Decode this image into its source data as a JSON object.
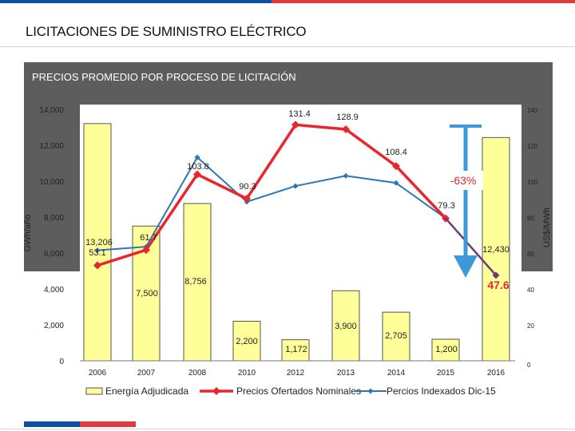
{
  "header": {
    "title": "LICITACIONES DE SUMINISTRO ELÉCTRICO",
    "panel_title": "PRECIOS PROMEDIO POR PROCESO DE LICITACIÓN"
  },
  "colors": {
    "bar_fill": "#ffff99",
    "bar_stroke": "#555555",
    "nominal": "#e8262c",
    "indexed": "#2e76b5",
    "arrow": "#3d9ad8",
    "tail_segment": "#6b3a7d"
  },
  "chart_data": {
    "type": "bar",
    "title": "",
    "categories": [
      "2006",
      "2007",
      "2008",
      "2010",
      "2012",
      "2013",
      "2014",
      "2015",
      "2016"
    ],
    "ylabel": "GWh/año",
    "y2label": "US$/MWh",
    "ylim": [
      0,
      14000
    ],
    "y2lim": [
      0,
      140
    ],
    "yticks": [
      "0",
      "2,000",
      "4,000",
      "6,000",
      "8,000",
      "10,000",
      "12,000",
      "14,000"
    ],
    "y2ticks": [
      "0",
      "20",
      "40",
      "60",
      "80",
      "100",
      "120",
      "140"
    ],
    "series": [
      {
        "name": "Energía Adjudicada",
        "kind": "bar",
        "values": [
          13206,
          7500,
          8756,
          2200,
          1172,
          3900,
          2705,
          1200,
          12430
        ],
        "labels": [
          "13,206",
          "7,500",
          "8,756",
          "2,200",
          "1,172",
          "3,900",
          "2,705",
          "1,200",
          "12,430"
        ]
      },
      {
        "name": "Precios Ofertados Nominales",
        "kind": "line",
        "values": [
          53.1,
          61.7,
          103.8,
          90.3,
          131.4,
          128.9,
          108.4,
          79.3,
          47.6
        ],
        "labels": [
          "53.1",
          "61.7",
          "103.8",
          "90.3",
          "131.4",
          "128.9",
          "108.4",
          "79.3",
          "47.6"
        ]
      },
      {
        "name": "Percios Indexados Dic-15",
        "kind": "line",
        "values": [
          61.5,
          63.5,
          113.3,
          88.5,
          97.3,
          103.0,
          99.0,
          79.3,
          47.6
        ]
      }
    ],
    "annotation": "-63%",
    "legend_position": "bottom"
  }
}
